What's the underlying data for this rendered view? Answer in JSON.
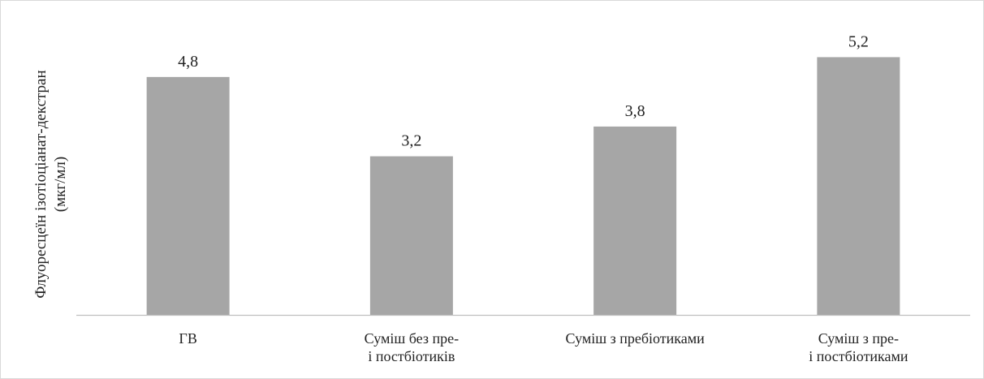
{
  "chart_data": {
    "type": "bar",
    "title": "",
    "xlabel": "",
    "ylabel": "Флуоресцеїн ізотіоціанат-декстран (мкг/мл)",
    "ylabel_lines": [
      "Флуоресцеїн ізотіоціанат-декстран",
      "(мкг/мл)"
    ],
    "categories": [
      [
        "ГВ"
      ],
      [
        "Суміш без пре-",
        "і постбіотиків"
      ],
      [
        "Суміш з пребіотиками"
      ],
      [
        "Суміш з пре-",
        "і постбіотиками"
      ]
    ],
    "values": [
      4.8,
      3.2,
      3.8,
      5.2
    ],
    "value_labels": [
      "4,8",
      "3,2",
      "3,8",
      "5,2"
    ],
    "ylim": [
      0,
      5.6
    ],
    "grid": false,
    "legend": "none",
    "bar_color": "#a6a6a6",
    "axis_color": "#bfbfbf"
  }
}
